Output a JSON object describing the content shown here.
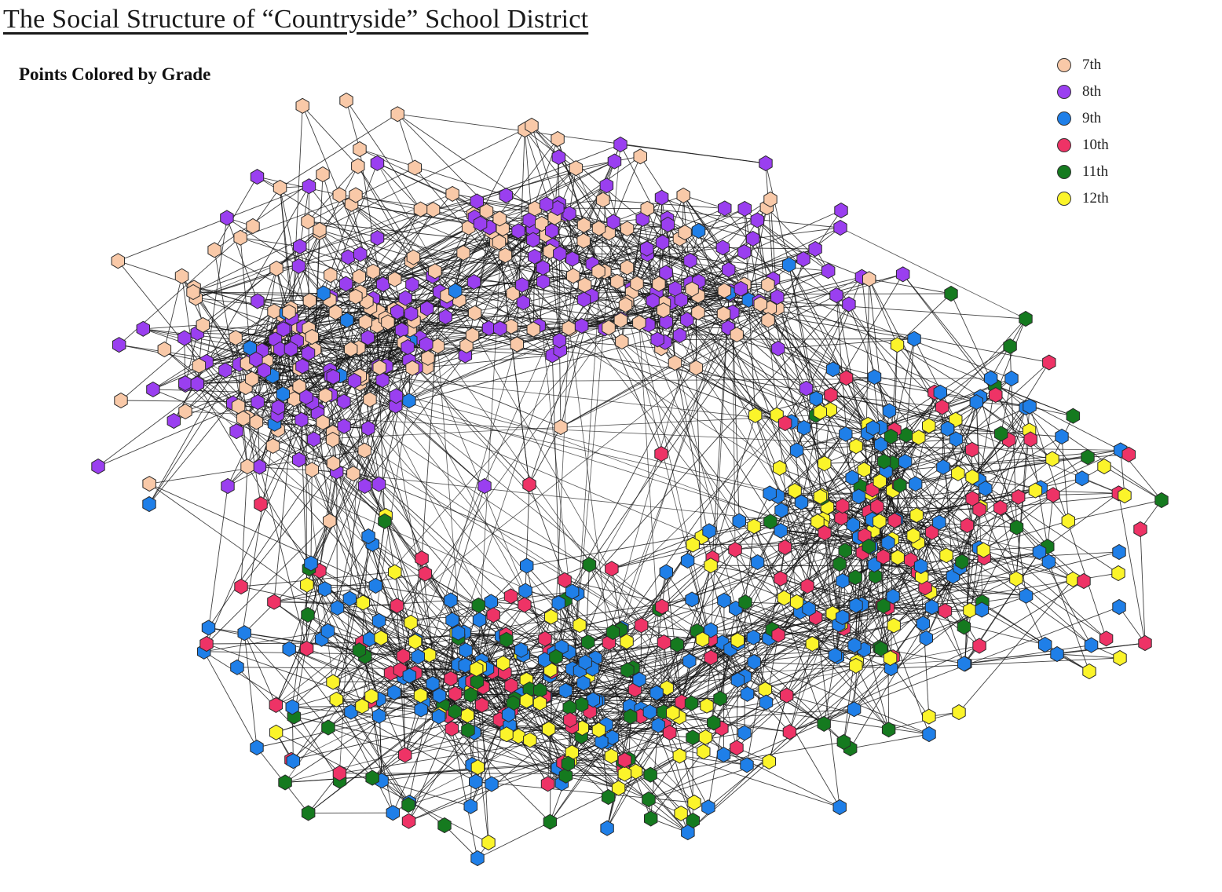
{
  "title": "The Social Structure of “Countryside” School District",
  "subtitle": "Points Colored by Grade",
  "legend": [
    {
      "label": "7th",
      "color": "#f9c9a8"
    },
    {
      "label": "8th",
      "color": "#9a3ff0"
    },
    {
      "label": "9th",
      "color": "#1f7fe8"
    },
    {
      "label": "10th",
      "color": "#ee3366"
    },
    {
      "label": "11th",
      "color": "#157a1f"
    },
    {
      "label": "12th",
      "color": "#fbf42a"
    }
  ],
  "node_icon": "hexagon-node-icon",
  "edge_color": "#111111"
}
